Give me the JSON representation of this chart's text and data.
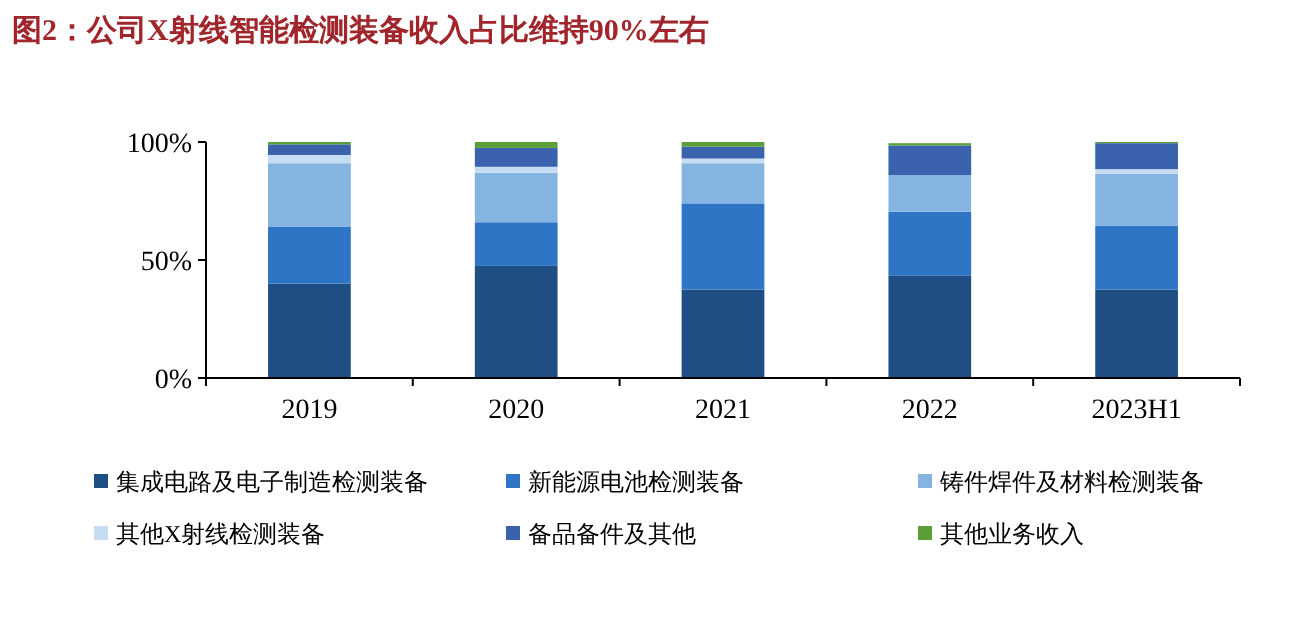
{
  "chart_data": {
    "type": "bar",
    "stacked": true,
    "title": "图2：公司X射线智能检测装备收入占比维持90%左右",
    "categories": [
      "2019",
      "2020",
      "2021",
      "2022",
      "2023H1"
    ],
    "series": [
      {
        "name": "集成电路及电子制造检测装备",
        "color": "#1f4e85",
        "values": [
          40,
          47.5,
          37.5,
          43.5,
          37.5
        ]
      },
      {
        "name": "新能源电池检测装备",
        "color": "#2e75c6",
        "values": [
          24,
          18.5,
          36.5,
          27,
          27
        ]
      },
      {
        "name": "铸件焊件及材料检测装备",
        "color": "#85b4e0",
        "values": [
          27,
          21,
          17,
          15.5,
          22
        ]
      },
      {
        "name": "其他X射线检测装备",
        "color": "#c6dcf2",
        "values": [
          3.5,
          2.5,
          2,
          null,
          2
        ]
      },
      {
        "name": "备品备件及其他",
        "color": "#3a62ad",
        "values": [
          4.5,
          8,
          5,
          12.5,
          11
        ]
      },
      {
        "name": "其他业务收入",
        "color": "#5c9e3a",
        "values": [
          1,
          2.5,
          2,
          1,
          0.5
        ]
      }
    ],
    "ylim": [
      0,
      100
    ],
    "yticks": [
      {
        "value": 0,
        "label": "0%"
      },
      {
        "value": 50,
        "label": "50%"
      },
      {
        "value": 100,
        "label": "100%"
      }
    ],
    "grid": false,
    "legend": "bottom"
  }
}
